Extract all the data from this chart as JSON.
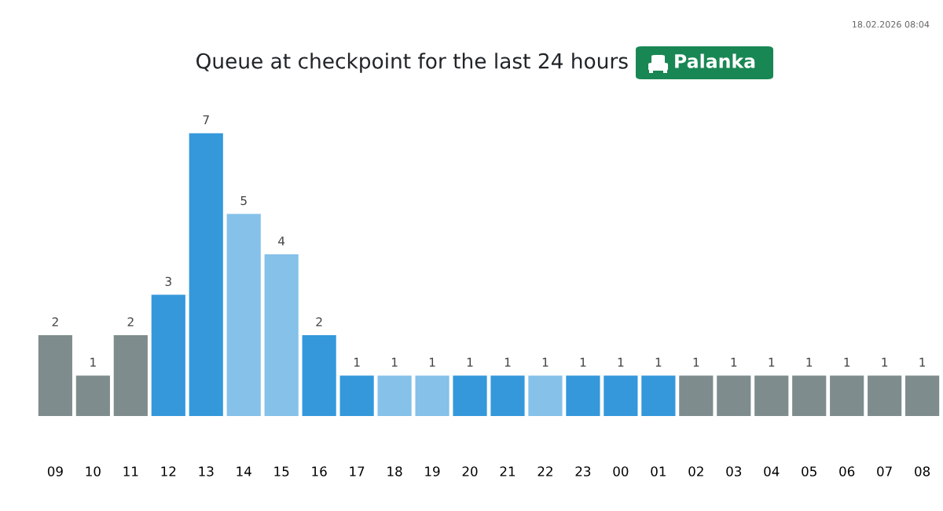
{
  "chart_data": {
    "type": "bar",
    "title": "Queue at checkpoint for the last 24 hours",
    "subtitle": "Palanka",
    "annotations": [
      "18.02.2026 08:04"
    ],
    "categories": [
      "09",
      "10",
      "11",
      "12",
      "13",
      "14",
      "15",
      "16",
      "17",
      "18",
      "19",
      "20",
      "21",
      "22",
      "23",
      "00",
      "01",
      "02",
      "03",
      "04",
      "05",
      "06",
      "07",
      "08"
    ],
    "values": [
      2,
      1,
      2,
      3,
      7,
      5,
      4,
      2,
      1,
      1,
      1,
      1,
      1,
      1,
      1,
      1,
      1,
      1,
      1,
      1,
      1,
      1,
      1,
      1
    ],
    "colors": [
      "#7f8c8d",
      "#7f8c8d",
      "#7f8c8d",
      "#3498db",
      "#3498db",
      "#85c1e9",
      "#85c1e9",
      "#3498db",
      "#3498db",
      "#85c1e9",
      "#85c1e9",
      "#3498db",
      "#3498db",
      "#85c1e9",
      "#3498db",
      "#3498db",
      "#3498db",
      "#7f8c8d",
      "#7f8c8d",
      "#7f8c8d",
      "#7f8c8d",
      "#7f8c8d",
      "#7f8c8d",
      "#7f8c8d"
    ],
    "data_labels": true,
    "grid": false,
    "legend": false
  }
}
